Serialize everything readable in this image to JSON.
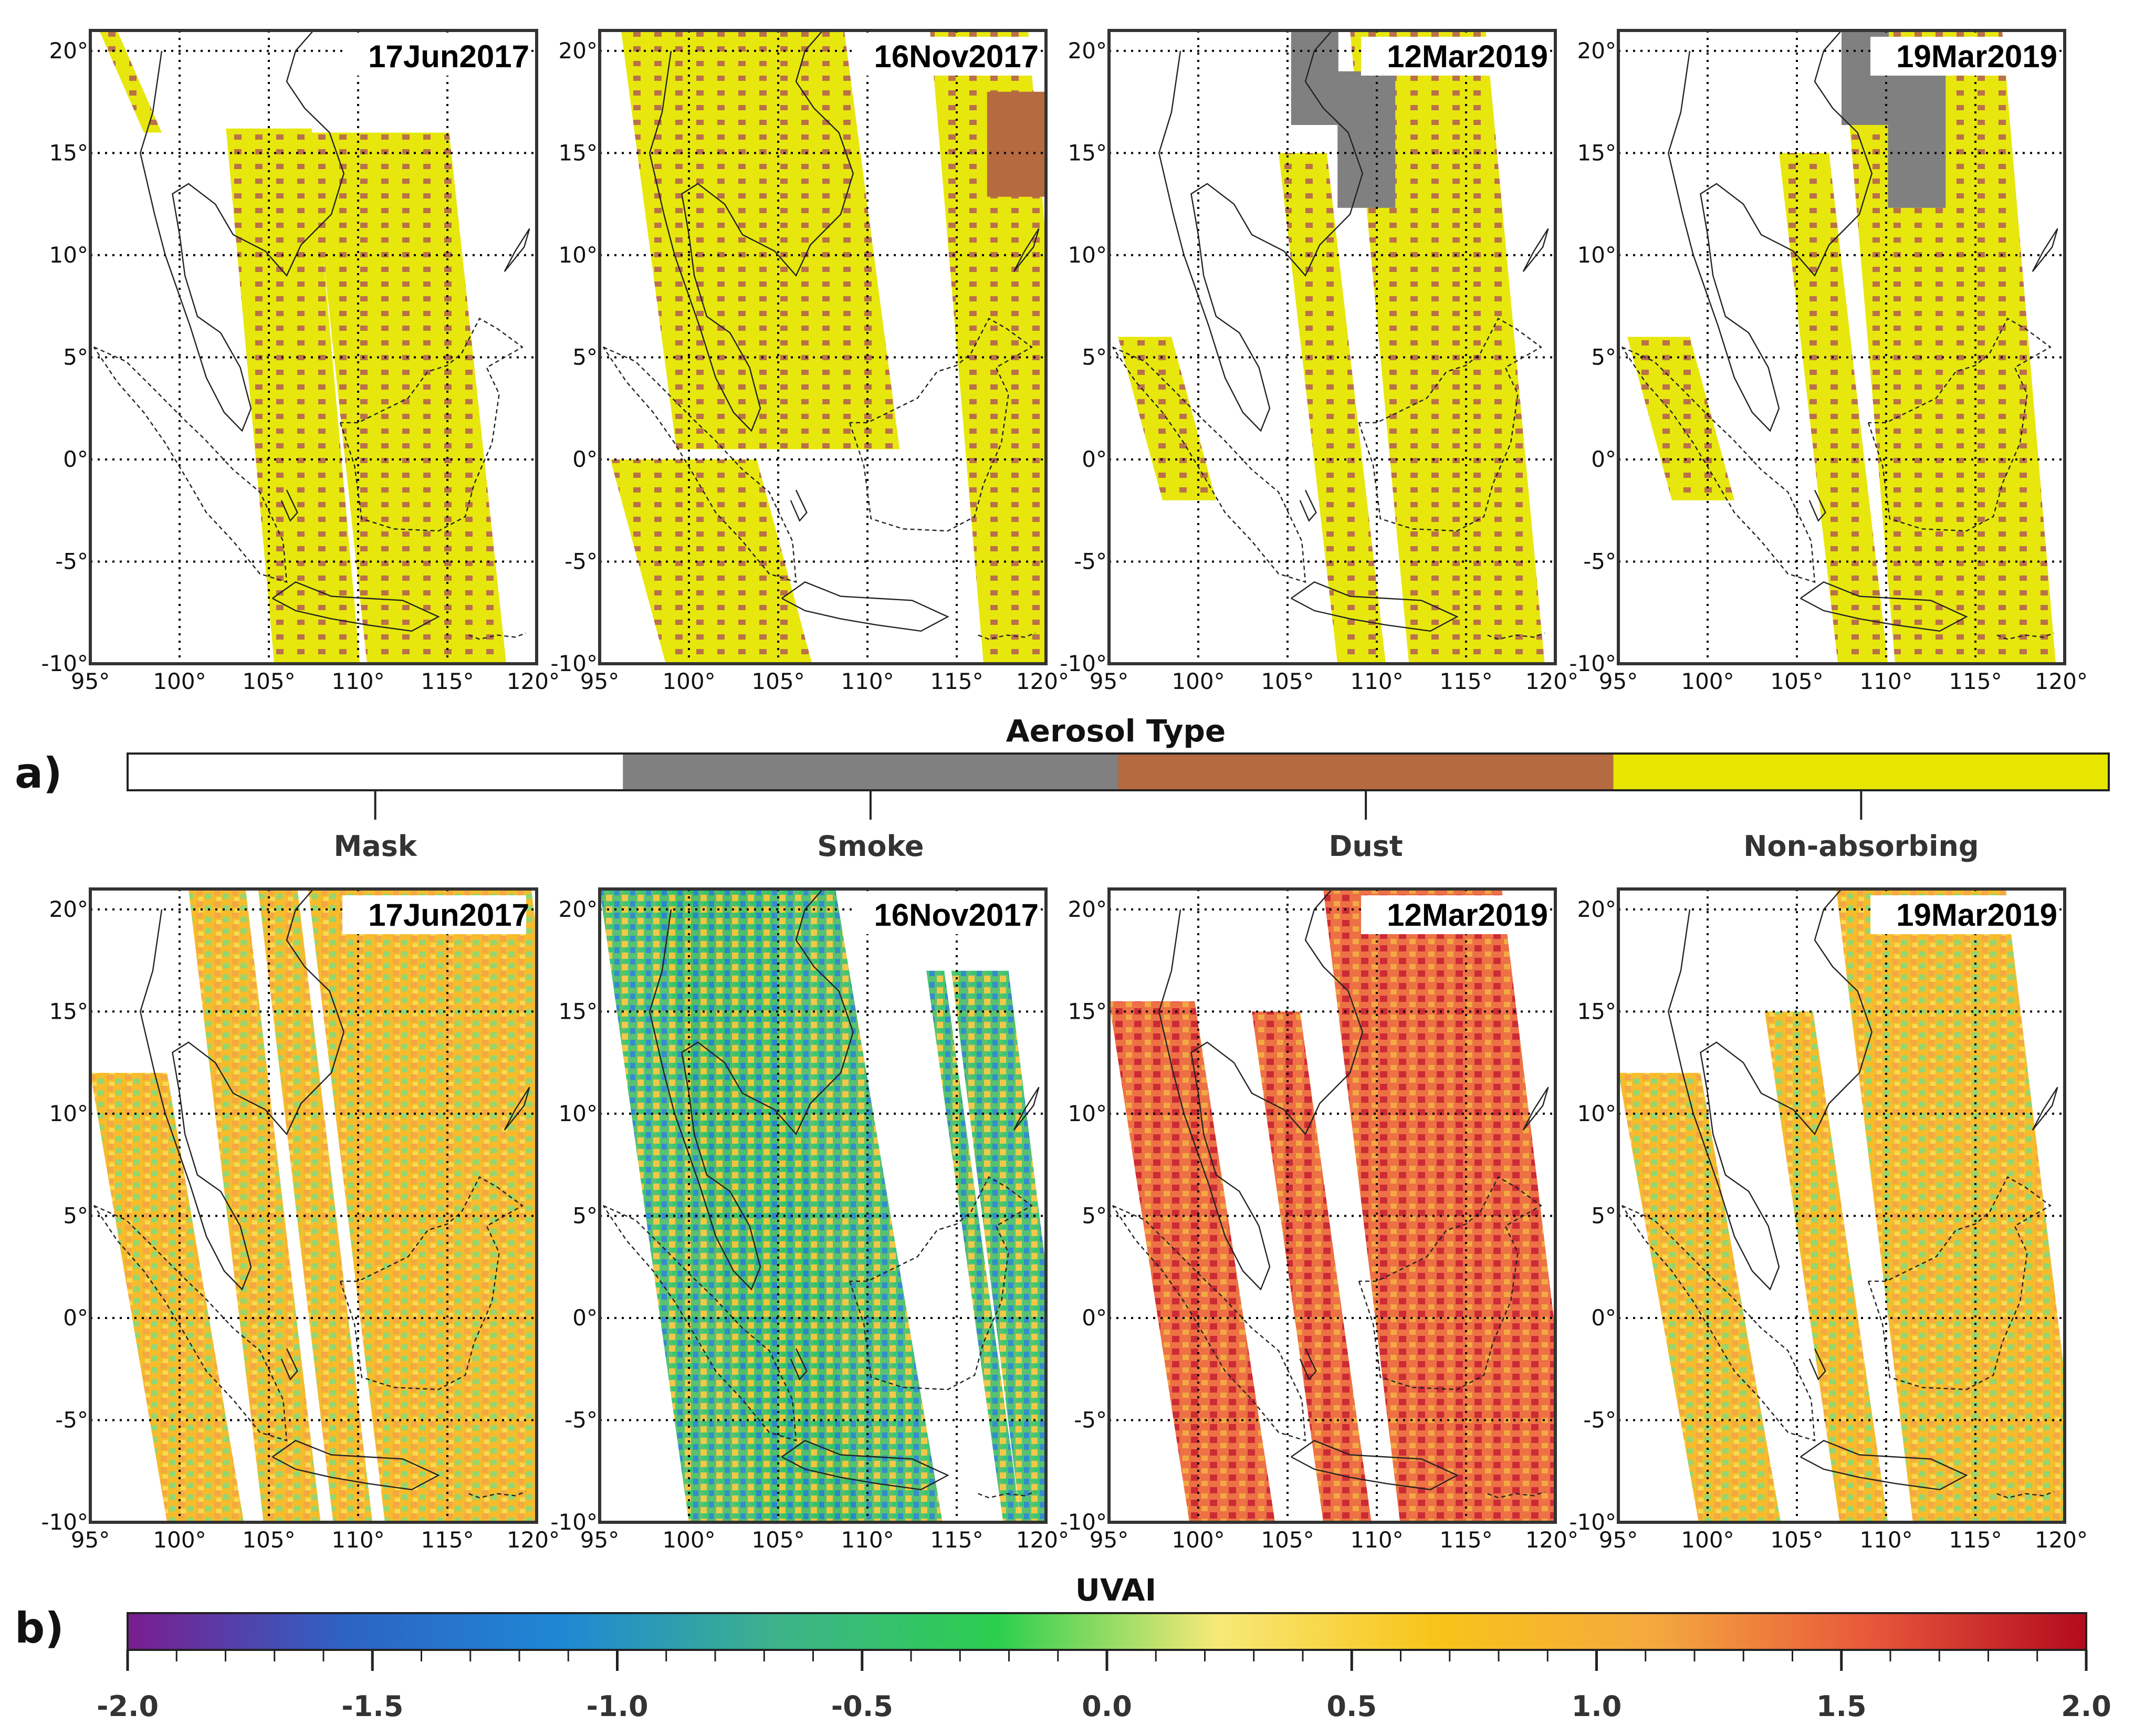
{
  "panel_a": {
    "label": "a)",
    "colorbar": {
      "title": "Aerosol Type",
      "categories": [
        {
          "label": "Mask",
          "color": "#ffffff"
        },
        {
          "label": "Smoke",
          "color": "#808080"
        },
        {
          "label": "Dust",
          "color": "#b56a3f"
        },
        {
          "label": "Non-absorbing",
          "color": "#e6e600"
        }
      ]
    }
  },
  "panel_b": {
    "label": "b)",
    "colorbar": {
      "title": "UVAI",
      "ticks": [
        "-2.0",
        "-1.5",
        "-1.0",
        "-0.5",
        "0.0",
        "0.5",
        "1.0",
        "1.5",
        "2.0"
      ],
      "stops": [
        "#7b1d8f",
        "#2d63c4",
        "#1e88d4",
        "#3db38a",
        "#2ccf4e",
        "#f7e978",
        "#f8c419",
        "#f4a93e",
        "#e8583a",
        "#b30b1e"
      ],
      "min": -2.0,
      "max": 2.0
    }
  },
  "maps": {
    "dates": [
      "17Jun2017",
      "16Nov2017",
      "12Mar2019",
      "19Mar2019"
    ],
    "lon_labels": [
      "95°",
      "100°",
      "105°",
      "110°",
      "115°",
      "120°"
    ],
    "lat_labels": [
      "20°",
      "15°",
      "10°",
      "5°",
      "0°",
      "-5°",
      "-10°"
    ],
    "lon_range": [
      95,
      120
    ],
    "lat_range": [
      -10,
      21
    ]
  }
}
